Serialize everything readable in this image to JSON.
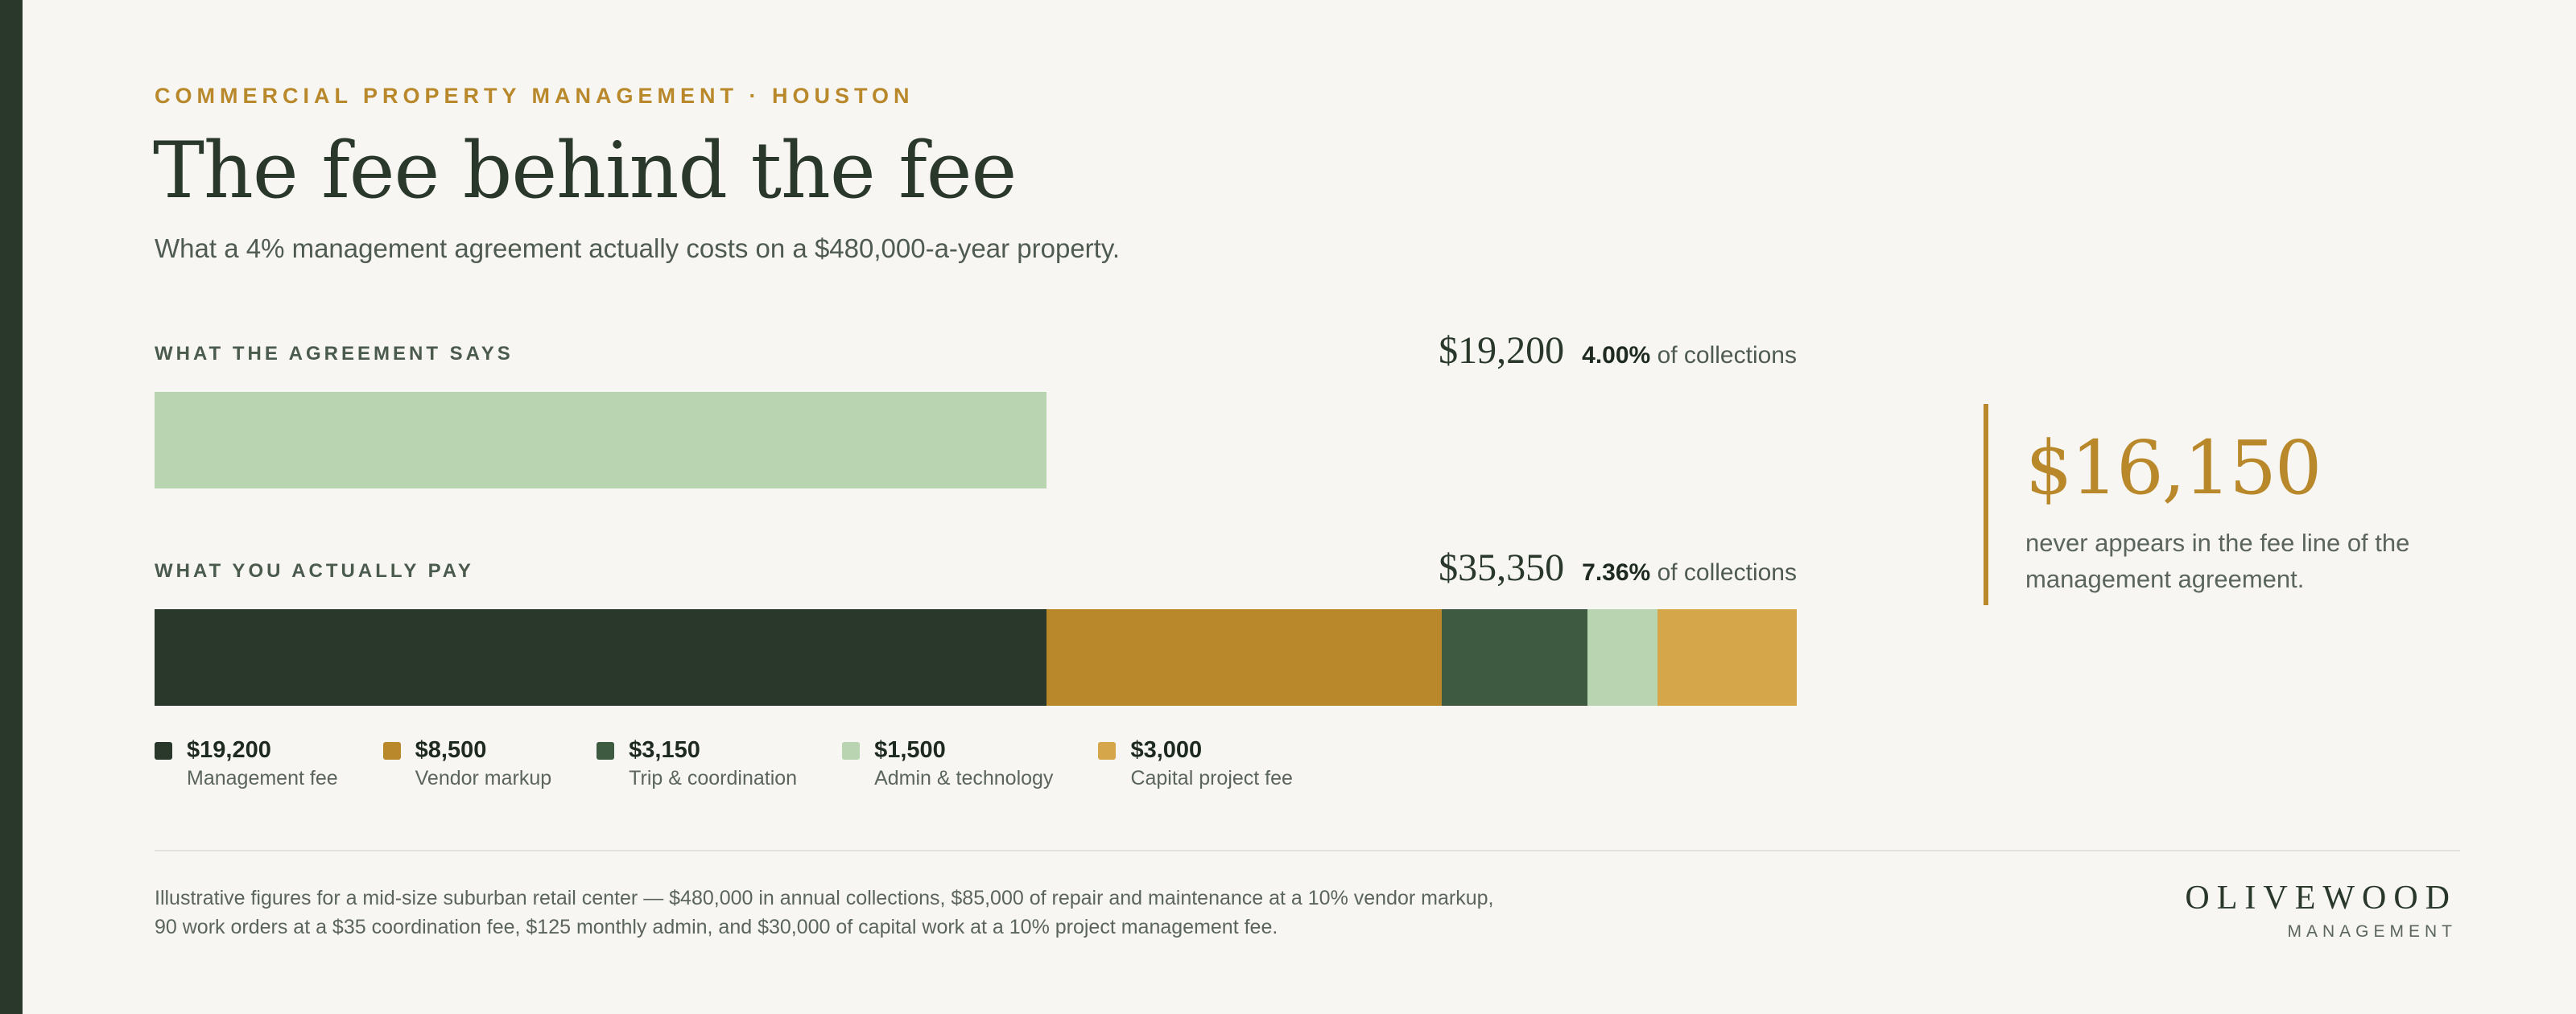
{
  "header": {
    "eyebrow": "COMMERCIAL PROPERTY MANAGEMENT · HOUSTON",
    "title": "The fee behind the fee",
    "subtitle": "What a 4% management agreement actually costs on a $480,000-a-year property."
  },
  "rows": {
    "agreement": {
      "label": "WHAT THE AGREEMENT SAYS",
      "total": "$19,200",
      "pct": "4.00%",
      "pct_suffix": "of collections"
    },
    "actual": {
      "label": "WHAT YOU ACTUALLY PAY",
      "total": "$35,350",
      "pct": "7.36%",
      "pct_suffix": "of collections"
    }
  },
  "chart_data": {
    "type": "bar",
    "orientation": "horizontal",
    "stacked": true,
    "xlim": [
      0,
      35350
    ],
    "categories": [
      "What the agreement says",
      "What you actually pay"
    ],
    "series": [
      {
        "name": "Management fee",
        "label": "$19,200",
        "values": [
          19200,
          19200
        ],
        "color": "#29382a",
        "agreement_color": "#b8d4b1"
      },
      {
        "name": "Vendor markup",
        "label": "$8,500",
        "values": [
          0,
          8500
        ],
        "color": "#b8882b"
      },
      {
        "name": "Trip & coordination",
        "label": "$3,150",
        "values": [
          0,
          3150
        ],
        "color": "#3e5a41"
      },
      {
        "name": "Admin & technology",
        "label": "$1,500",
        "values": [
          0,
          1500
        ],
        "color": "#b8d4b1"
      },
      {
        "name": "Capital project fee",
        "label": "$3,000",
        "values": [
          0,
          3000
        ],
        "color": "#d5a74a"
      }
    ],
    "legend_position": "bottom-left",
    "grid": false
  },
  "callout": {
    "amount": "$16,150",
    "text": "never appears in the fee line of the management agreement."
  },
  "footnote": {
    "line1": "Illustrative figures for a mid-size suburban retail center — $480,000 in annual collections, $85,000 of repair and maintenance at a 10% vendor markup,",
    "line2": "90 work orders at a $35 coordination fee, $125 monthly admin, and $30,000 of capital work at a 10% project management fee."
  },
  "brand": {
    "name": "OLIVEWOOD",
    "sub": "MANAGEMENT"
  }
}
